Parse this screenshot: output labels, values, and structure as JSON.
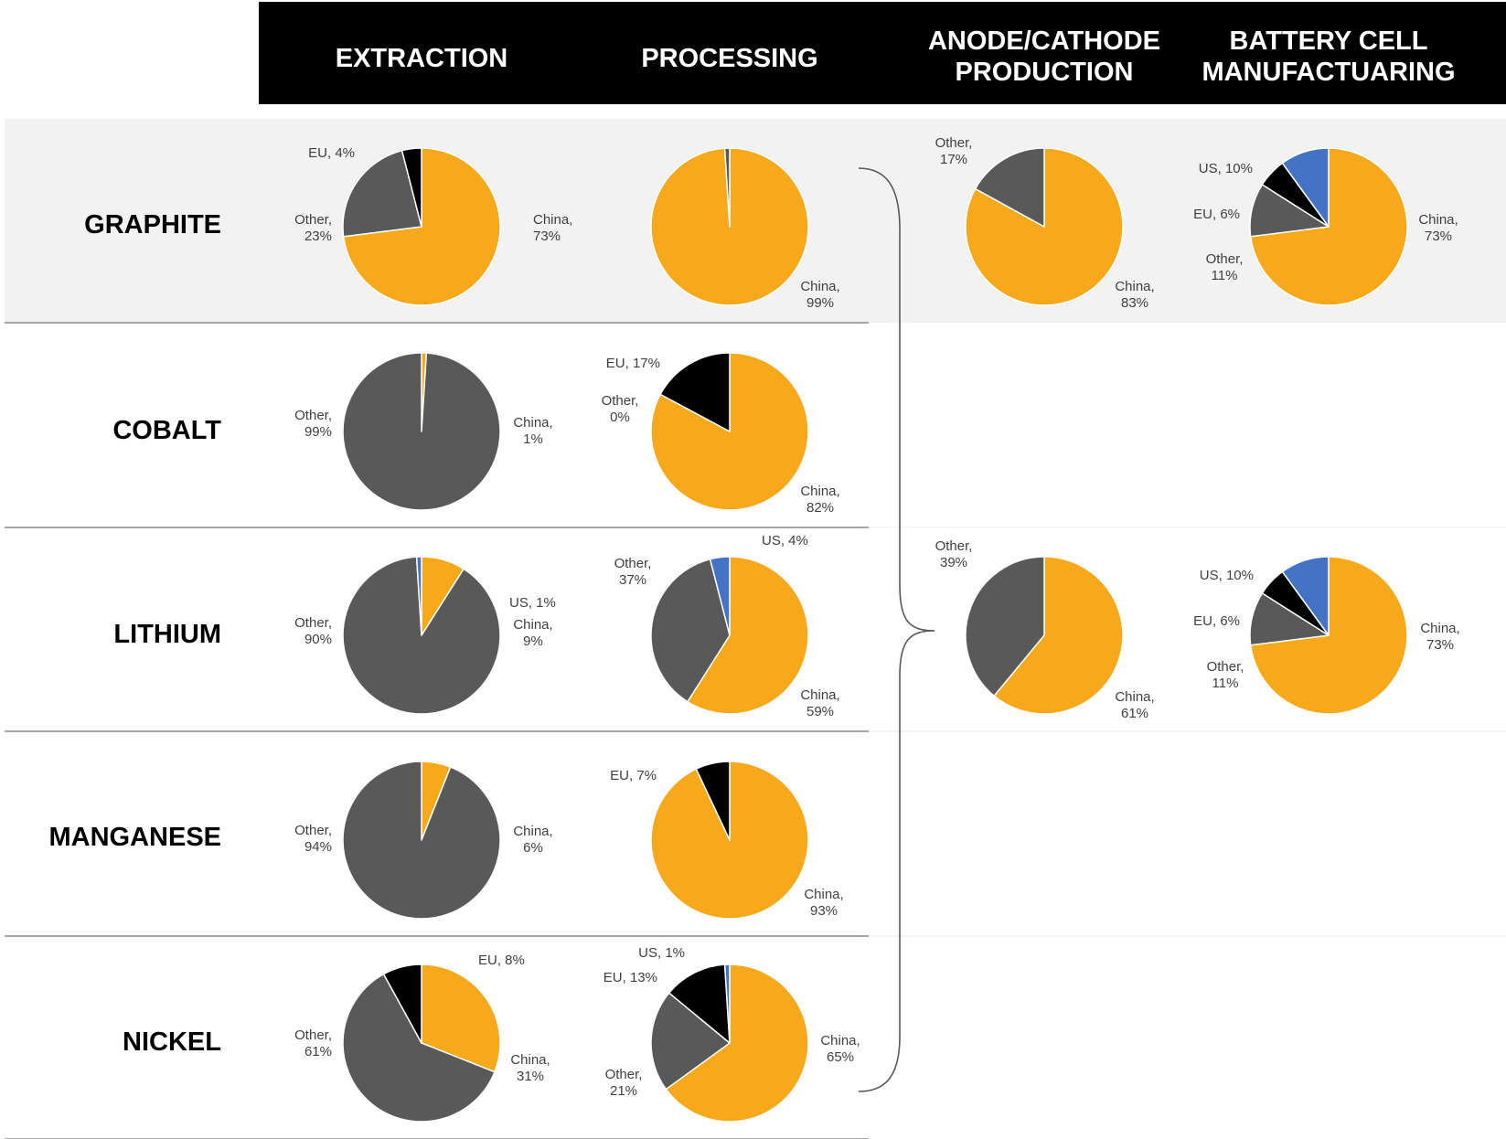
{
  "colors": {
    "China": "#F7A81B",
    "Other": "#595959",
    "EU": "#000000",
    "US": "#4472C4",
    "header_bg": "#000000",
    "band_bg": "#F2F2F2",
    "divider": "#A6A6A6"
  },
  "header": {
    "extraction": "EXTRACTION",
    "processing": "PROCESSING",
    "anode_line1": "ANODE/CATHODE",
    "anode_line2": "PRODUCTION",
    "battery_line1": "BATTERY CELL",
    "battery_line2": "MANUFACTUARING"
  },
  "rows": {
    "graphite": "GRAPHITE",
    "cobalt": "COBALT",
    "lithium": "LITHIUM",
    "manganese": "MANGANESE",
    "nickel": "NICKEL"
  },
  "chart_data": [
    {
      "type": "pie",
      "id": "graphite-extraction",
      "slices": [
        {
          "name": "China",
          "value": 73,
          "text1": "China,",
          "text2": "73%"
        },
        {
          "name": "Other",
          "value": 23,
          "text1": "Other,",
          "text2": "23%"
        },
        {
          "name": "EU",
          "value": 4,
          "text1": "EU, 4%",
          "text2": ""
        }
      ]
    },
    {
      "type": "pie",
      "id": "graphite-processing",
      "slices": [
        {
          "name": "China",
          "value": 99,
          "text1": "China,",
          "text2": "99%"
        },
        {
          "name": "Other",
          "value": 1,
          "text1": "",
          "text2": ""
        }
      ]
    },
    {
      "type": "pie",
      "id": "graphite-anode",
      "slices": [
        {
          "name": "China",
          "value": 83,
          "text1": "China,",
          "text2": "83%"
        },
        {
          "name": "Other",
          "value": 17,
          "text1": "Other,",
          "text2": "17%"
        }
      ]
    },
    {
      "type": "pie",
      "id": "graphite-battery",
      "slices": [
        {
          "name": "China",
          "value": 73,
          "text1": "China,",
          "text2": "73%"
        },
        {
          "name": "Other",
          "value": 11,
          "text1": "Other,",
          "text2": "11%"
        },
        {
          "name": "EU",
          "value": 6,
          "text1": "EU, 6%",
          "text2": ""
        },
        {
          "name": "US",
          "value": 10,
          "text1": "US, 10%",
          "text2": ""
        }
      ]
    },
    {
      "type": "pie",
      "id": "cobalt-extraction",
      "slices": [
        {
          "name": "China",
          "value": 1,
          "text1": "China,",
          "text2": "1%"
        },
        {
          "name": "Other",
          "value": 99,
          "text1": "Other,",
          "text2": "99%"
        }
      ]
    },
    {
      "type": "pie",
      "id": "cobalt-processing",
      "slices": [
        {
          "name": "China",
          "value": 82,
          "text1": "China,",
          "text2": "82%"
        },
        {
          "name": "Other",
          "value": 0,
          "text1": "Other,",
          "text2": "0%"
        },
        {
          "name": "EU",
          "value": 17,
          "text1": "EU, 17%",
          "text2": ""
        }
      ]
    },
    {
      "type": "pie",
      "id": "lithium-extraction",
      "slices": [
        {
          "name": "China",
          "value": 9,
          "text1": "China,",
          "text2": "9%"
        },
        {
          "name": "Other",
          "value": 90,
          "text1": "Other,",
          "text2": "90%"
        },
        {
          "name": "US",
          "value": 1,
          "text1": "US, 1%",
          "text2": ""
        }
      ]
    },
    {
      "type": "pie",
      "id": "lithium-processing",
      "slices": [
        {
          "name": "China",
          "value": 59,
          "text1": "China,",
          "text2": "59%"
        },
        {
          "name": "Other",
          "value": 37,
          "text1": "Other,",
          "text2": "37%"
        },
        {
          "name": "US",
          "value": 4,
          "text1": "US, 4%",
          "text2": ""
        }
      ]
    },
    {
      "type": "pie",
      "id": "lithium-anode",
      "slices": [
        {
          "name": "China",
          "value": 61,
          "text1": "China,",
          "text2": "61%"
        },
        {
          "name": "Other",
          "value": 39,
          "text1": "Other,",
          "text2": "39%"
        }
      ]
    },
    {
      "type": "pie",
      "id": "lithium-battery",
      "slices": [
        {
          "name": "China",
          "value": 73,
          "text1": "China,",
          "text2": "73%"
        },
        {
          "name": "Other",
          "value": 11,
          "text1": "Other,",
          "text2": "11%"
        },
        {
          "name": "EU",
          "value": 6,
          "text1": "EU, 6%",
          "text2": ""
        },
        {
          "name": "US",
          "value": 10,
          "text1": "US, 10%",
          "text2": ""
        }
      ]
    },
    {
      "type": "pie",
      "id": "manganese-extraction",
      "slices": [
        {
          "name": "China",
          "value": 6,
          "text1": "China,",
          "text2": "6%"
        },
        {
          "name": "Other",
          "value": 94,
          "text1": "Other,",
          "text2": "94%"
        }
      ]
    },
    {
      "type": "pie",
      "id": "manganese-processing",
      "slices": [
        {
          "name": "China",
          "value": 93,
          "text1": "China,",
          "text2": "93%"
        },
        {
          "name": "EU",
          "value": 7,
          "text1": "EU, 7%",
          "text2": ""
        }
      ]
    },
    {
      "type": "pie",
      "id": "nickel-extraction",
      "slices": [
        {
          "name": "China",
          "value": 31,
          "text1": "China,",
          "text2": "31%"
        },
        {
          "name": "Other",
          "value": 61,
          "text1": "Other,",
          "text2": "61%"
        },
        {
          "name": "EU",
          "value": 8,
          "text1": "EU, 8%",
          "text2": ""
        }
      ]
    },
    {
      "type": "pie",
      "id": "nickel-processing",
      "slices": [
        {
          "name": "China",
          "value": 65,
          "text1": "China,",
          "text2": "65%"
        },
        {
          "name": "Other",
          "value": 21,
          "text1": "Other,",
          "text2": "21%"
        },
        {
          "name": "EU",
          "value": 13,
          "text1": "EU, 13%",
          "text2": ""
        },
        {
          "name": "US",
          "value": 1,
          "text1": "US, 1%",
          "text2": ""
        }
      ]
    }
  ]
}
